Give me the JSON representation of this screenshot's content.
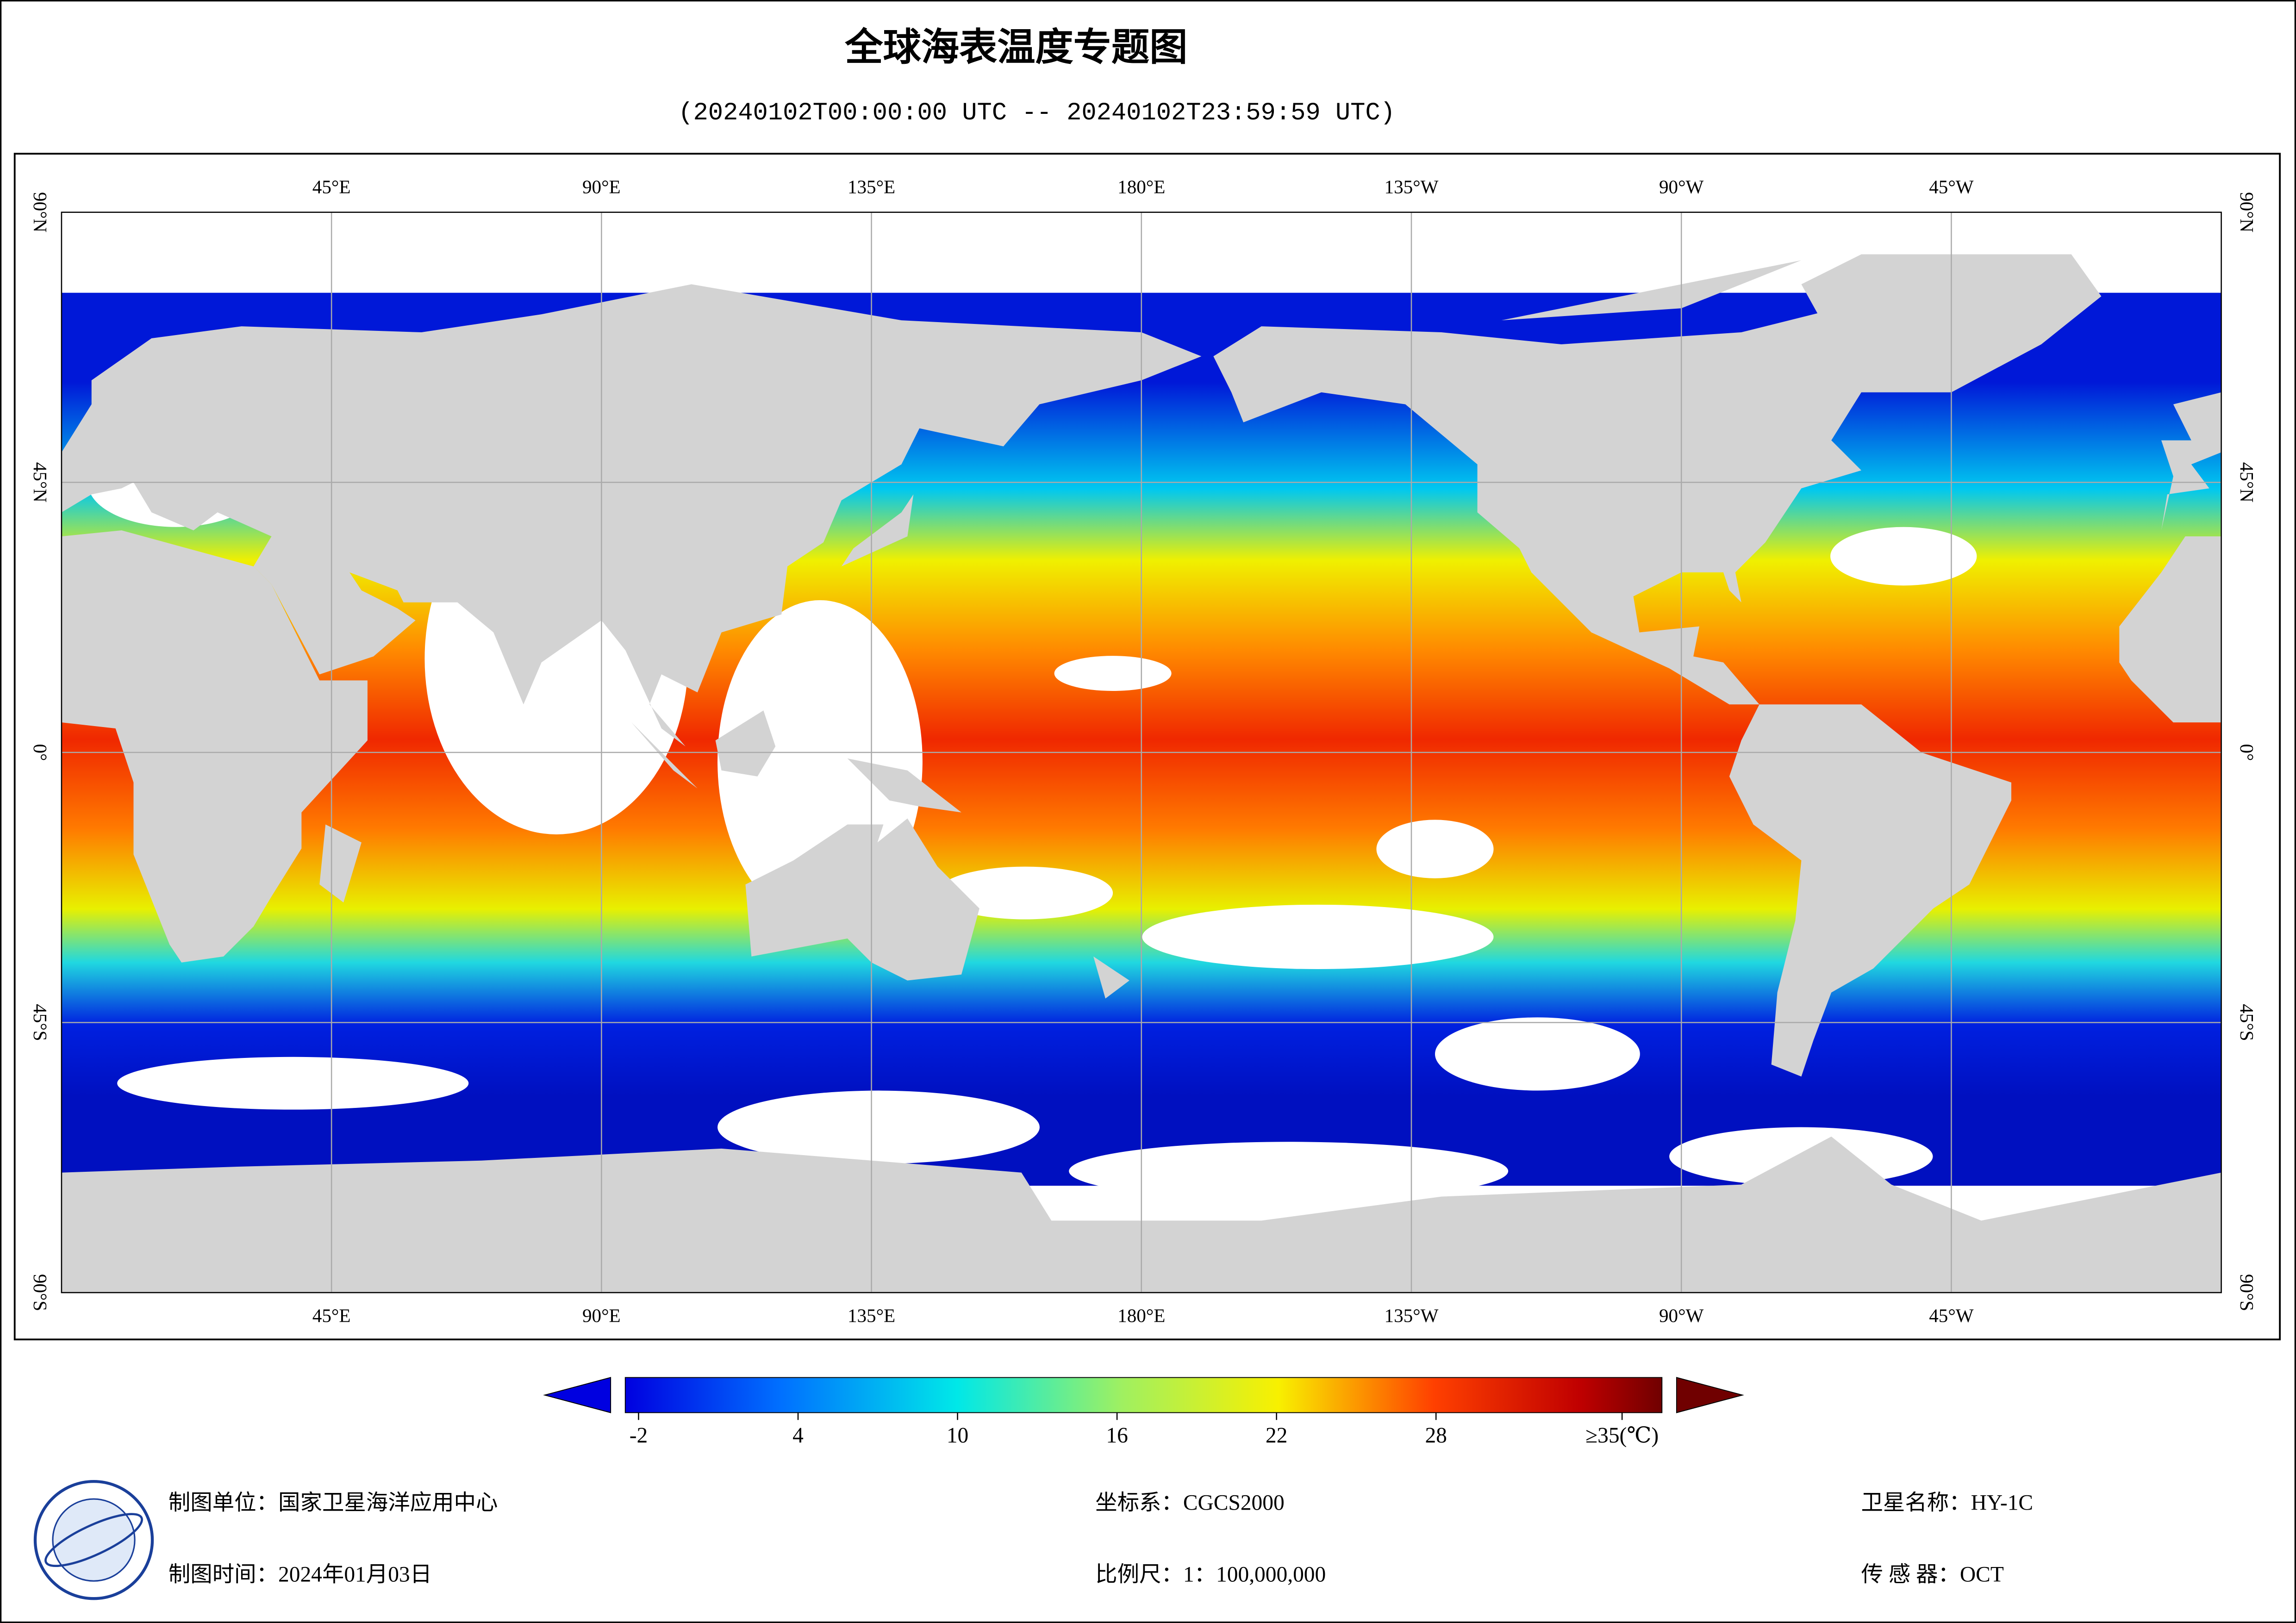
{
  "header": {
    "title": "全球海表温度专题图",
    "subtitle": "(20240102T00:00:00 UTC -- 20240102T23:59:59 UTC)"
  },
  "map": {
    "lonlim": [
      0,
      360
    ],
    "latlim": [
      -90,
      90
    ],
    "lon_ticks": [
      {
        "value": 45,
        "label": "45°E"
      },
      {
        "value": 90,
        "label": "90°E"
      },
      {
        "value": 135,
        "label": "135°E"
      },
      {
        "value": 180,
        "label": "180°E"
      },
      {
        "value": 225,
        "label": "135°W"
      },
      {
        "value": 270,
        "label": "90°W"
      },
      {
        "value": 315,
        "label": "45°W"
      }
    ],
    "lat_ticks": [
      {
        "value": 90,
        "label": "90°N"
      },
      {
        "value": 45,
        "label": "45°N"
      },
      {
        "value": 0,
        "label": "0°"
      },
      {
        "value": -45,
        "label": "45°S"
      },
      {
        "value": -90,
        "label": "90°S"
      }
    ],
    "grid": true
  },
  "colorbar": {
    "lim": [
      -2.5,
      36.5
    ],
    "ticks": [
      -2,
      4,
      10,
      16,
      22,
      28,
      {
        "value": 35,
        "label": "≥35(℃)"
      }
    ]
  },
  "footer": {
    "unit": "制图单位：国家卫星海洋应用中心",
    "time": "制图时间：2024年01月03日",
    "crs": "坐标系：CGCS2000",
    "scale": "比例尺：1：100,000,000",
    "satellite": "卫星名称：HY-1C",
    "sensor": "传 感 器：OCT"
  }
}
